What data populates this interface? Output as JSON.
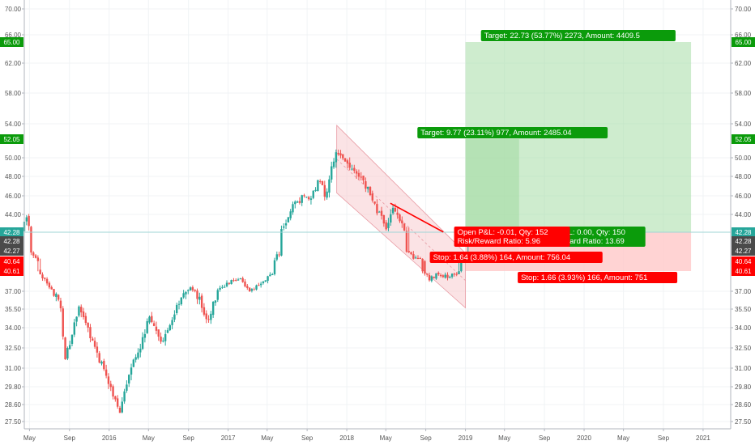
{
  "chart_data": {
    "type": "candlestick",
    "title": "",
    "grid": true,
    "colors": {
      "up": "#26a69a",
      "down": "#ef5350",
      "target_zone": "#a5dca5",
      "stop_zone": "#ffc8c8",
      "channel": "#f8c8cc",
      "label_green": "#0b9b0b",
      "label_red": "#ff0000",
      "label_dark": "#4a4a4a",
      "price_line": "#9fd6d6"
    },
    "y_axis": {
      "ticks": [
        "70.00",
        "66.00",
        "62.00",
        "58.00",
        "54.00",
        "50.00",
        "48.00",
        "46.00",
        "44.00",
        "37.00",
        "35.50",
        "34.00",
        "32.50",
        "31.00",
        "29.80",
        "28.60",
        "27.50"
      ],
      "badges": [
        {
          "text": "65.00",
          "value": 65.0,
          "color": "#0b9b0b"
        },
        {
          "text": "52.05",
          "value": 52.05,
          "color": "#0b9b0b"
        },
        {
          "text": "42.28",
          "value": 42.28,
          "color": "#26a69a"
        },
        {
          "text": "42.28",
          "value": 42.28,
          "color": "#4a4a4a"
        },
        {
          "text": "42.27",
          "value": 42.27,
          "color": "#4a4a4a"
        },
        {
          "text": "40.64",
          "value": 40.64,
          "color": "#ff0000"
        },
        {
          "text": "40.61",
          "value": 40.61,
          "color": "#ff0000"
        }
      ]
    },
    "x_axis": {
      "ticks": [
        "May",
        "Sep",
        "2016",
        "May",
        "Sep",
        "2017",
        "May",
        "Sep",
        "2018",
        "May",
        "Sep",
        "2019",
        "May",
        "Sep",
        "2020",
        "May",
        "Sep",
        "2021"
      ]
    },
    "ohlc_anchors": [
      [
        "2015-04-15",
        42.5
      ],
      [
        "2015-05-01",
        43.8
      ],
      [
        "2015-05-20",
        41.5
      ],
      [
        "2015-06-15",
        39.8
      ],
      [
        "2015-07-10",
        37.3
      ],
      [
        "2015-08-10",
        36.0
      ],
      [
        "2015-08-24",
        31.5
      ],
      [
        "2015-09-15",
        33.5
      ],
      [
        "2015-10-10",
        35.8
      ],
      [
        "2015-11-01",
        34.0
      ],
      [
        "2015-12-01",
        32.0
      ],
      [
        "2016-01-10",
        30.0
      ],
      [
        "2016-02-10",
        28.0
      ],
      [
        "2016-03-01",
        30.0
      ],
      [
        "2016-04-10",
        32.5
      ],
      [
        "2016-05-10",
        34.8
      ],
      [
        "2016-06-15",
        33.0
      ],
      [
        "2016-07-10",
        34.0
      ],
      [
        "2016-08-10",
        36.0
      ],
      [
        "2016-09-10",
        37.5
      ],
      [
        "2016-10-10",
        36.5
      ],
      [
        "2016-11-05",
        34.5
      ],
      [
        "2016-12-10",
        37.3
      ],
      [
        "2017-01-10",
        38.5
      ],
      [
        "2017-02-10",
        39.3
      ],
      [
        "2017-03-20",
        37.0
      ],
      [
        "2017-04-20",
        38.5
      ],
      [
        "2017-05-20",
        39.8
      ],
      [
        "2017-06-20",
        42.5
      ],
      [
        "2017-07-20",
        44.5
      ],
      [
        "2017-08-20",
        45.8
      ],
      [
        "2017-09-20",
        46.0
      ],
      [
        "2017-10-15",
        47.5
      ],
      [
        "2017-11-05",
        46.0
      ],
      [
        "2017-11-25",
        49.8
      ],
      [
        "2017-12-15",
        50.5
      ],
      [
        "2018-01-10",
        49.0
      ],
      [
        "2018-02-10",
        48.0
      ],
      [
        "2018-03-10",
        47.0
      ],
      [
        "2018-04-10",
        44.5
      ],
      [
        "2018-05-10",
        42.8
      ],
      [
        "2018-06-01",
        44.8
      ],
      [
        "2018-07-01",
        42.6
      ],
      [
        "2018-08-01",
        41.2
      ],
      [
        "2018-09-01",
        40.6
      ],
      [
        "2018-09-20",
        39.2
      ],
      [
        "2018-10-15",
        40.2
      ],
      [
        "2018-11-15",
        39.5
      ],
      [
        "2018-12-10",
        40.2
      ],
      [
        "2019-01-15",
        41.8
      ]
    ],
    "channel": {
      "top": [
        [
          "2017-12-01",
          53.8
        ],
        [
          "2019-01-01",
          41.9
        ]
      ],
      "bottom": [
        [
          "2017-12-01",
          46.3
        ],
        [
          "2019-01-01",
          35.6
        ]
      ]
    },
    "trend_line": [
      [
        "2018-05-15",
        45.2
      ],
      [
        "2018-10-25",
        42.3
      ]
    ],
    "positions": [
      {
        "entry": 42.28,
        "target": 65.0,
        "stop": 40.61,
        "start": "2019-01-01",
        "end": "2020-11-25",
        "target_label": "Target: 22.73 (53.77%) 2273, Amount: 4409.5",
        "stop_label": "Stop: 1.66 (3.93%) 166, Amount: 751",
        "info_lines": [
          "Open P&L: 0.00, Qty: 150",
          "Risk/Reward Ratio: 13.69"
        ]
      },
      {
        "entry": 42.28,
        "target": 52.05,
        "stop": 40.64,
        "start": "2019-01-01",
        "end": "2019-06-15",
        "target_label": "Target: 9.77 (23.11%) 977, Amount: 2485.04",
        "stop_label": "Stop: 1.64 (3.88%) 164, Amount: 756.04",
        "info_lines": [
          "Open P&L: -0.01, Qty: 152",
          "Risk/Reward Ratio: 5.96"
        ]
      }
    ]
  }
}
